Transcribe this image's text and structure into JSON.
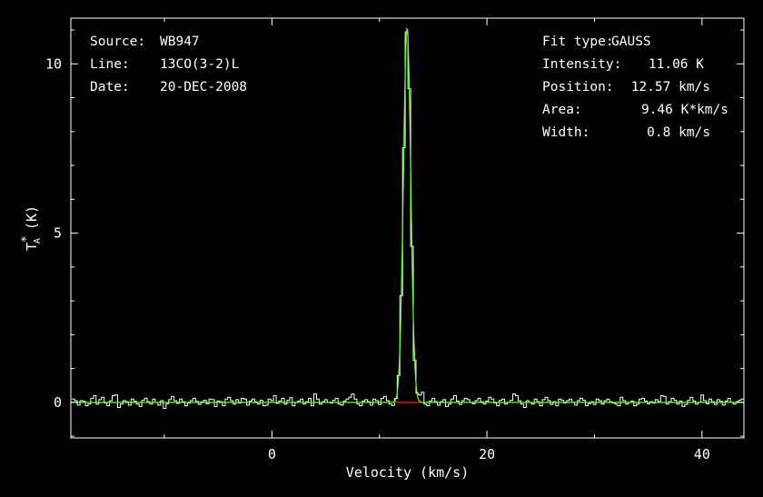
{
  "chart_data": {
    "type": "line",
    "xlabel": "Velocity (km/s)",
    "ylabel": {
      "base": "T",
      "sup": "*",
      "sub": "A",
      "unit": " (K)"
    },
    "xlim": [
      -18.7,
      43.9
    ],
    "ylim": [
      -1.05,
      11.35
    ],
    "x_ticks": [
      0,
      20,
      40
    ],
    "y_ticks": [
      0,
      5,
      10
    ],
    "grid": false,
    "colors": {
      "background": "#000000",
      "spectrum": "#ffffff",
      "fit": "#66ff33",
      "baseline": "#ff2020",
      "frame": "#ffffff"
    },
    "info_left": [
      {
        "key": "Source:",
        "value": "WB947"
      },
      {
        "key": "Line:",
        "value": "13CO(3-2)L"
      },
      {
        "key": "Date:",
        "value": "20-DEC-2008"
      }
    ],
    "info_right": [
      {
        "key": "Fit type:",
        "value": "GAUSS"
      },
      {
        "key": "Intensity:",
        "value": "11.06 K"
      },
      {
        "key": "Position:",
        "value": "12.57 km/s"
      },
      {
        "key": "Area:",
        "value": "9.46 K*km/s"
      },
      {
        "key": "Width:",
        "value": "0.8 km/s"
      }
    ],
    "fit": {
      "type": "GAUSS",
      "intensity": 11.06,
      "position": 12.57,
      "area": 9.46,
      "width": 0.8
    },
    "baseline_segment": [
      11.2,
      13.9
    ],
    "spectrum": {
      "x_start": -18.6,
      "x_step": 0.25,
      "noise": [
        0.1,
        0.05,
        -0.08,
        0.05,
        0.03,
        -0.1,
        -0.05,
        0.12,
        0.2,
        -0.05,
        0.08,
        0.15,
        -0.02,
        -0.1,
        0.05,
        0.2,
        0.22,
        -0.15,
        -0.05,
        0.05,
        0.02,
        -0.08,
        0.1,
        0.03,
        -0.05,
        -0.12,
        0.06,
        0.12,
        0.02,
        -0.05,
        0.1,
        0.0,
        -0.08,
        0.05,
        -0.18,
        -0.04,
        0.08,
        0.18,
        0.05,
        -0.03,
        0.1,
        0.02,
        -0.1,
        -0.02,
        0.05,
        0.12,
        0.03,
        -0.06,
        0.02,
        0.06,
        -0.04,
        0.1,
        0.08,
        -0.12,
        0.04,
        0.02,
        -0.1,
        0.1,
        0.15,
        0.05,
        -0.05,
        0.08,
        -0.02,
        0.12,
        0.1,
        -0.08,
        0.04,
        0.1,
        0.02,
        -0.05,
        0.06,
        -0.1,
        -0.08,
        0.1,
        0.05,
        0.2,
        -0.03,
        0.04,
        0.12,
        -0.05,
        0.06,
        0.14,
        -0.1,
        0.0,
        0.04,
        0.1,
        -0.05,
        0.02,
        0.12,
        -0.1,
        0.25,
        0.1,
        -0.05,
        0.02,
        0.08,
        0.0,
        -0.02,
        0.06,
        0.12,
        -0.05,
        -0.08,
        0.04,
        0.1,
        0.15,
        0.25,
        0.1,
        -0.05,
        -0.1,
        0.04,
        0.08,
        0.02,
        -0.08,
        0.1,
        0.05,
        -0.06,
        0.12,
        0.18,
        0.05,
        -0.05,
        -0.1,
        0.02,
        0.08,
        0.1,
        -0.06,
        -0.02,
        0.05,
        0.1,
        -0.04,
        0.06,
        0.2,
        0.3,
        -0.05,
        -0.1,
        0.04,
        0.12,
        0.02,
        -0.08,
        0.02,
        0.08,
        -0.12,
        -0.05,
        0.1,
        0.2,
        0.04,
        -0.06,
        0.05,
        0.12,
        0.08,
        0.0,
        -0.04,
        0.05,
        0.12,
        0.02,
        -0.05,
        0.04,
        0.15,
        0.1,
        -0.02,
        -0.1,
        0.06,
        0.1,
        -0.05,
        0.0,
        0.06,
        0.25,
        0.2,
        0.05,
        -0.05,
        -0.15,
        0.05,
        0.0,
        -0.05,
        0.1,
        0.02,
        -0.1,
        0.08,
        0.15,
        0.05,
        -0.06,
        0.02,
        -0.1,
        0.1,
        0.06,
        -0.02,
        0.05,
        0.1,
        0.0,
        -0.08,
        0.05,
        0.12,
        0.06,
        -0.1,
        -0.04,
        0.02,
        -0.06,
        0.1,
        0.05,
        -0.05,
        0.05,
        0.1,
        0.02,
        -0.02,
        -0.05,
        -0.1,
        0.15,
        0.05,
        -0.05,
        0.0,
        0.04,
        -0.1,
        -0.05,
        0.1,
        0.12,
        0.04,
        -0.04,
        0.02,
        -0.02,
        0.08,
        0.02,
        0.2,
        0.18,
        -0.05,
        0.02,
        0.12,
        0.06,
        -0.05,
        0.04,
        -0.12,
        -0.06,
        0.06,
        0.15,
        0.04,
        -0.05,
        0.0,
        0.22,
        0.05,
        -0.04,
        0.1,
        0.02,
        -0.06,
        0.08,
        0.03,
        -0.08,
        0.04,
        0.12,
        0.0,
        -0.05,
        0.02,
        0.06,
        0.1,
        -0.1,
        -0.05,
        0.06,
        0.2,
        0.02,
        -0.03,
        0.12,
        0.06,
        -0.02,
        0.04,
        -0.05,
        0.02,
        0.15,
        0.2,
        0.04,
        -0.02,
        -0.1,
        0.05,
        0.2,
        0.1,
        -0.08,
        0.02,
        -0.05,
        0.12,
        0.03,
        -0.03,
        0.08,
        0.1,
        -0.06,
        0.04,
        0.18,
        -0.12,
        0.02,
        0.1,
        -0.08,
        0.04,
        0.1,
        -0.1,
        0.05,
        0.06
      ]
    }
  }
}
